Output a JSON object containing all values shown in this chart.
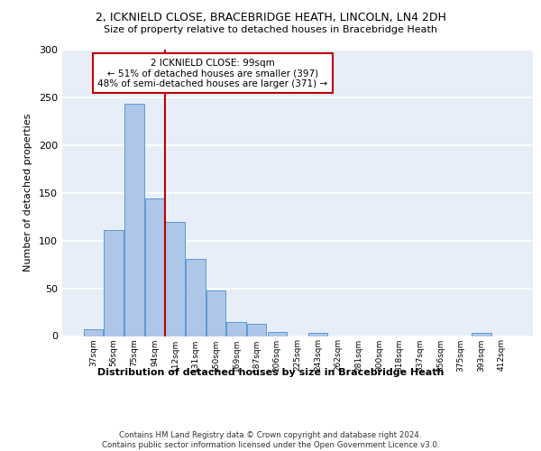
{
  "title1": "2, ICKNIELD CLOSE, BRACEBRIDGE HEATH, LINCOLN, LN4 2DH",
  "title2": "Size of property relative to detached houses in Bracebridge Heath",
  "xlabel": "Distribution of detached houses by size in Bracebridge Heath",
  "ylabel": "Number of detached properties",
  "categories": [
    "37sqm",
    "56sqm",
    "75sqm",
    "94sqm",
    "112sqm",
    "131sqm",
    "150sqm",
    "169sqm",
    "187sqm",
    "206sqm",
    "225sqm",
    "243sqm",
    "262sqm",
    "281sqm",
    "300sqm",
    "318sqm",
    "337sqm",
    "356sqm",
    "375sqm",
    "393sqm",
    "412sqm"
  ],
  "values": [
    7,
    111,
    243,
    144,
    120,
    81,
    48,
    15,
    13,
    4,
    0,
    3,
    0,
    0,
    0,
    0,
    0,
    0,
    0,
    3,
    0
  ],
  "bar_color": "#aec6e8",
  "bar_edge_color": "#5a9bd4",
  "bg_color": "#e8eef8",
  "grid_color": "#ffffff",
  "vline_x": 3.5,
  "vline_color": "#c00000",
  "annotation_text": "2 ICKNIELD CLOSE: 99sqm\n← 51% of detached houses are smaller (397)\n48% of semi-detached houses are larger (371) →",
  "annotation_box_color": "#c00000",
  "footer": "Contains HM Land Registry data © Crown copyright and database right 2024.\nContains public sector information licensed under the Open Government Licence v3.0.",
  "ylim": [
    0,
    300
  ],
  "yticks": [
    0,
    50,
    100,
    150,
    200,
    250,
    300
  ]
}
